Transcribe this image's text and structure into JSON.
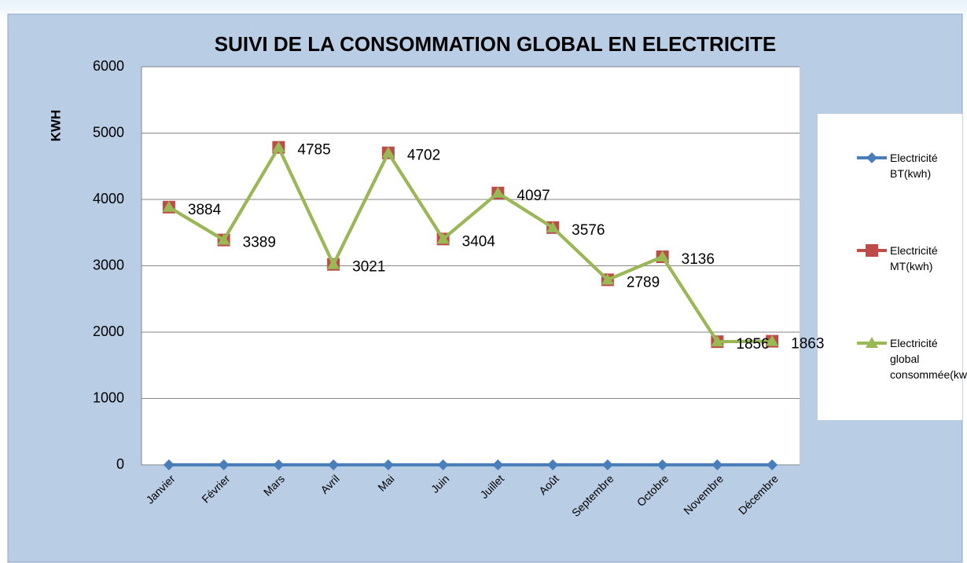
{
  "chart_data": {
    "type": "line",
    "title": "SUIVI DE LA CONSOMMATION GLOBAL EN ELECTRICITE",
    "y_label": "KWH",
    "categories": [
      "Janvier",
      "Février",
      "Mars",
      "Avril",
      "Mai",
      "Juin",
      "Juillet",
      "Août",
      "Septembre",
      "Octobre",
      "Novembre",
      "Décembre"
    ],
    "series": [
      {
        "name": "Electricité BT(kwh)",
        "color": "#4a7ebb",
        "marker": "diamond",
        "values": [
          0,
          0,
          0,
          0,
          0,
          0,
          0,
          0,
          0,
          0,
          0,
          0
        ]
      },
      {
        "name": "Electricité MT(kwh)",
        "color": "#be4b48",
        "marker": "square",
        "values": [
          3884,
          3389,
          4785,
          3021,
          4702,
          3404,
          4097,
          3576,
          2789,
          3136,
          1856,
          1863
        ]
      },
      {
        "name": "Electricité global consommée(kwh)",
        "color": "#98b954",
        "marker": "triangle",
        "values": [
          3884,
          3389,
          4785,
          3021,
          4702,
          3404,
          4097,
          3576,
          2789,
          3136,
          1856,
          1863
        ],
        "data_labels": true
      }
    ],
    "ylim": [
      0,
      6000
    ],
    "yticks": [
      0,
      1000,
      2000,
      3000,
      4000,
      5000,
      6000
    ],
    "grid": true,
    "legend": "right"
  }
}
